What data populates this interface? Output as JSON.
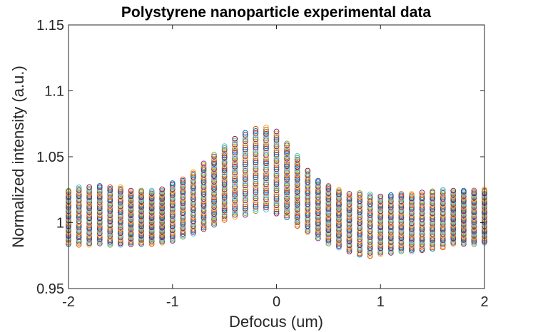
{
  "chart_data": {
    "type": "scatter",
    "title": "Polystyrene nanoparticle experimental data",
    "xlabel": "Defocus (um)",
    "ylabel": "Normalized intensity (a.u.)",
    "xlim": [
      -2,
      2
    ],
    "ylim": [
      0.95,
      1.15
    ],
    "x_ticks": [
      -2,
      -1,
      0,
      1,
      2
    ],
    "x_tick_labels": [
      "-2",
      "-1",
      "0",
      "1",
      "2"
    ],
    "y_ticks": [
      0.95,
      1,
      1.05,
      1.1,
      1.15
    ],
    "y_tick_labels": [
      "0.95",
      "1",
      "1.05",
      "1.1",
      "1.15"
    ],
    "marker": "hollow-circle",
    "grid": false,
    "defocus_values": [
      -2.0,
      -1.9,
      -1.8,
      -1.7,
      -1.6,
      -1.5,
      -1.4,
      -1.3,
      -1.2,
      -1.1,
      -1.0,
      -0.9,
      -0.8,
      -0.7,
      -0.6,
      -0.5,
      -0.4,
      -0.3,
      -0.2,
      -0.1,
      0.0,
      0.1,
      0.2,
      0.3,
      0.4,
      0.5,
      0.6,
      0.7,
      0.8,
      0.9,
      1.0,
      1.1,
      1.2,
      1.3,
      1.4,
      1.5,
      1.6,
      1.7,
      1.8,
      1.9,
      2.0
    ],
    "mean_profile": [
      1.004,
      1.005,
      1.005,
      1.006,
      1.005,
      1.005,
      1.004,
      1.004,
      1.004,
      1.005,
      1.008,
      1.011,
      1.015,
      1.02,
      1.025,
      1.03,
      1.034,
      1.037,
      1.04,
      1.041,
      1.038,
      1.032,
      1.024,
      1.016,
      1.01,
      1.006,
      1.003,
      1.0,
      0.999,
      0.998,
      0.998,
      0.999,
      1.0,
      1.0,
      1.001,
      1.002,
      1.003,
      1.004,
      1.004,
      1.004,
      1.005
    ],
    "spread_profile": [
      0.026,
      0.028,
      0.028,
      0.028,
      0.028,
      0.028,
      0.026,
      0.026,
      0.026,
      0.026,
      0.028,
      0.028,
      0.03,
      0.032,
      0.034,
      0.036,
      0.038,
      0.04,
      0.04,
      0.04,
      0.04,
      0.036,
      0.034,
      0.03,
      0.028,
      0.028,
      0.028,
      0.028,
      0.03,
      0.03,
      0.028,
      0.028,
      0.028,
      0.028,
      0.028,
      0.028,
      0.028,
      0.026,
      0.026,
      0.026,
      0.026
    ],
    "points_per_defocus": 40,
    "series_colors": [
      "#0072BD",
      "#D95319",
      "#EDB120",
      "#7E2F8E",
      "#77AC30",
      "#4DBEEE",
      "#A2142F"
    ]
  }
}
